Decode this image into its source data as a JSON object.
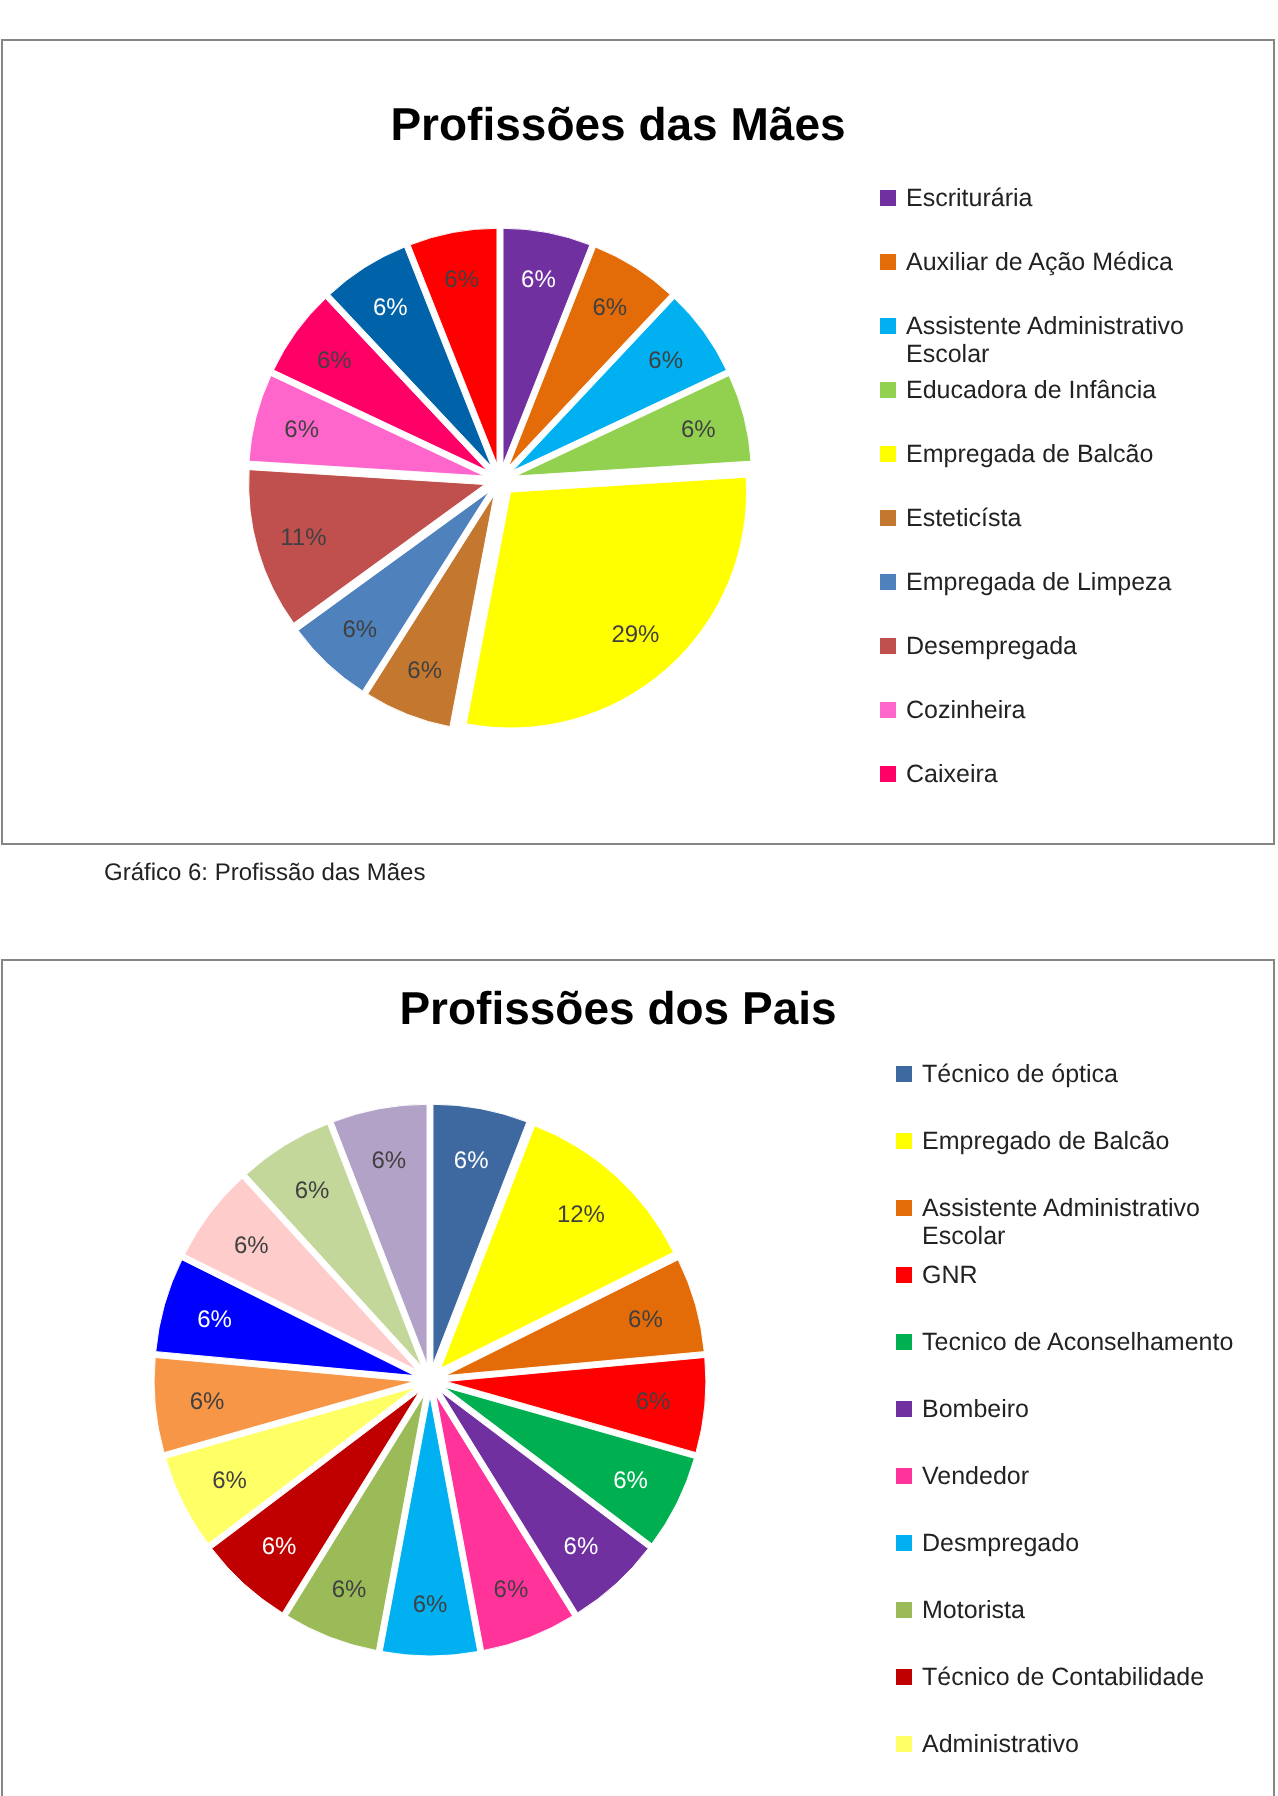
{
  "chart_data": [
    {
      "type": "pie",
      "title": "Profissões das Mães",
      "legend": "right",
      "annotations": [
        "Gráfico 6: Profissão das Mães"
      ],
      "categories": [
        "Escriturária",
        "Auxiliar de Ação Médica",
        "Assistente Administrativo Escolar",
        "Educadora de Infância",
        "Empregada de Balcão",
        "Esteticísta",
        "Empregada de Limpeza",
        "Desempregada",
        "Cozinheira",
        "Caixeira",
        null,
        null
      ],
      "values": [
        6,
        6,
        6,
        6,
        29,
        6,
        6,
        11,
        6,
        6,
        6,
        6
      ],
      "value_labels": [
        "6%",
        "6%",
        "6%",
        "6%",
        "29%",
        "6%",
        "6%",
        "11%",
        "6%",
        "6%",
        "6%",
        "6%"
      ],
      "colors": [
        "#7030a0",
        "#e36c09",
        "#00b0f0",
        "#92d050",
        "#ffff00",
        "#c4772f",
        "#4f81bd",
        "#c0504d",
        "#ff66cc",
        "#ff0066",
        "#0062a8",
        "#ff0000"
      ]
    },
    {
      "type": "pie",
      "title": "Profissões dos Pais",
      "legend": "right",
      "categories": [
        "Técnico de óptica",
        "Empregado de Balcão",
        "Assistente Administrativo Escolar",
        "GNR",
        "Tecnico de Aconselhamento",
        "Bombeiro",
        "Vendedor",
        "Desmpregado",
        "Motorista",
        "Técnico de Contabilidade",
        "Administrativo",
        null,
        null,
        null,
        null,
        null
      ],
      "values": [
        6,
        12,
        6,
        6,
        6,
        6,
        6,
        6,
        6,
        6,
        6,
        6,
        6,
        6,
        6,
        6
      ],
      "value_labels": [
        "6%",
        "12%",
        "6%",
        "6%",
        "6%",
        "6%",
        "6%",
        "6%",
        "6%",
        "6%",
        "6%",
        "6%",
        "6%",
        "6%",
        "6%",
        "6%"
      ],
      "colors": [
        "#3d68a0",
        "#ffff00",
        "#e36c09",
        "#ff0000",
        "#00b050",
        "#7030a0",
        "#ff3399",
        "#00b0f0",
        "#9bbb59",
        "#c00000",
        "#ffff66",
        "#f79646",
        "#0000ff",
        "#ffcccc",
        "#c4d79b",
        "#b3a2c7"
      ]
    }
  ]
}
